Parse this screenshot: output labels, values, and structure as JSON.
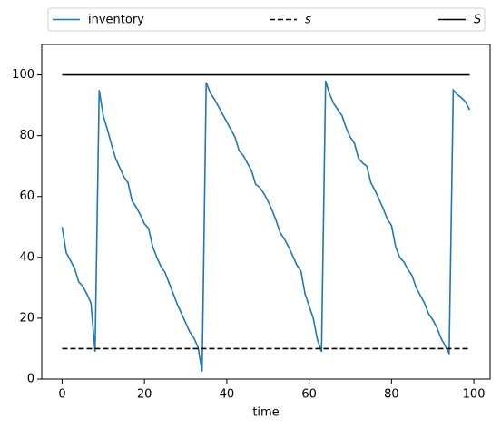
{
  "chart_data": {
    "type": "line",
    "xlabel": "time",
    "xlim": [
      -4.95,
      103.95
    ],
    "xticks": [
      0,
      20,
      40,
      60,
      80,
      100
    ],
    "ylim": [
      0,
      110
    ],
    "yticks": [
      0,
      20,
      40,
      60,
      80,
      100
    ],
    "legend": "top",
    "series": [
      {
        "name": "inventory",
        "color": "#1f77b4",
        "linestyle": "solid",
        "x": [
          0,
          1,
          2,
          3,
          4,
          5,
          6,
          7,
          8,
          9,
          10,
          11,
          12,
          13,
          14,
          15,
          16,
          17,
          18,
          19,
          20,
          21,
          22,
          23,
          24,
          25,
          26,
          27,
          28,
          29,
          30,
          31,
          32,
          33,
          34,
          35,
          36,
          37,
          38,
          39,
          40,
          41,
          42,
          43,
          44,
          45,
          46,
          47,
          48,
          49,
          50,
          51,
          52,
          53,
          54,
          55,
          56,
          57,
          58,
          59,
          60,
          61,
          62,
          63,
          64,
          65,
          66,
          67,
          68,
          69,
          70,
          71,
          72,
          73,
          74,
          75,
          76,
          77,
          78,
          79,
          80,
          81,
          82,
          83,
          84,
          85,
          86,
          87,
          88,
          89,
          90,
          91,
          92,
          93,
          94,
          95,
          96,
          97,
          98,
          99
        ],
        "values": [
          50,
          41.5,
          39,
          36.5,
          32,
          30.5,
          28,
          25,
          9,
          95,
          86.5,
          82,
          77,
          72.5,
          69.5,
          66.5,
          64.5,
          58.5,
          56.5,
          54,
          51,
          49.5,
          43.5,
          40,
          37,
          35,
          31.5,
          28,
          24.5,
          21.5,
          18.5,
          15.5,
          13.5,
          10.5,
          2.5,
          97.5,
          94,
          92,
          89.5,
          87,
          84.5,
          82,
          79.5,
          75,
          73.5,
          71,
          68.5,
          64,
          63,
          61,
          58.5,
          55.5,
          52,
          48,
          46,
          43.5,
          40.5,
          37.5,
          35.5,
          28,
          24,
          20,
          13,
          9,
          98,
          93.5,
          90.5,
          88.5,
          86.5,
          82.5,
          79.5,
          77.5,
          72.5,
          71,
          70,
          64.5,
          62,
          59,
          56,
          52.5,
          50.5,
          43.5,
          40,
          38.5,
          36,
          34,
          30,
          27.5,
          25,
          21.5,
          19.5,
          17,
          13.5,
          11,
          8.5,
          95,
          93.5,
          92.5,
          91,
          88.5
        ]
      },
      {
        "name": "s",
        "color": "#000000",
        "linestyle": "dashed",
        "x": [
          0,
          99
        ],
        "values": [
          10,
          10
        ]
      },
      {
        "name": "S",
        "color": "#000000",
        "linestyle": "solid",
        "x": [
          0,
          99
        ],
        "values": [
          100,
          100
        ]
      }
    ]
  }
}
